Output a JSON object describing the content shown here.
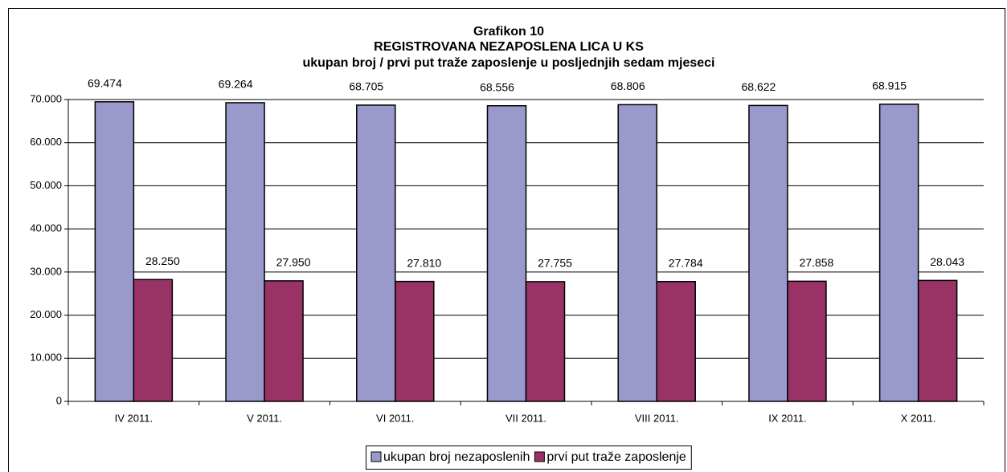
{
  "chart_data": {
    "type": "bar",
    "title": "Grafikon 10",
    "subtitle": "REGISTROVANA NEZAPOSLENA LICA U KS",
    "subtitle2": "ukupan broj / prvi put traže zaposlenje u posljednjih sedam mjeseci",
    "categories": [
      "IV 2011.",
      "V 2011.",
      "VI 2011.",
      "VII 2011.",
      "VIII 2011.",
      "IX 2011.",
      "X 2011."
    ],
    "series": [
      {
        "name": "ukupan broj nezaposlenih",
        "color": "#9999cc",
        "values": [
          69474,
          69264,
          68705,
          68556,
          68806,
          68622,
          68915
        ],
        "value_labels": [
          "69.474",
          "69.264",
          "68.705",
          "68.556",
          "68.806",
          "68.622",
          "68.915"
        ]
      },
      {
        "name": "prvi put traže zaposlenje",
        "color": "#993366",
        "values": [
          28250,
          27950,
          27810,
          27755,
          27784,
          27858,
          28043
        ],
        "value_labels": [
          "28.250",
          "27.950",
          "27.810",
          "27.755",
          "27.784",
          "27.858",
          "28.043"
        ]
      }
    ],
    "ylim": [
      0,
      70000
    ],
    "yticks": [
      0,
      {
        "value": 10000,
        "label": "10.000"
      },
      {
        "value": 20000,
        "label": "20.000"
      },
      {
        "value": 30000,
        "label": "30.000"
      },
      {
        "value": 40000,
        "label": "40.000"
      },
      {
        "value": 50000,
        "label": "50.000"
      },
      {
        "value": 60000,
        "label": "60.000"
      },
      {
        "value": 70000,
        "label": "70.000"
      }
    ],
    "grid": true,
    "legend": "bottom"
  }
}
